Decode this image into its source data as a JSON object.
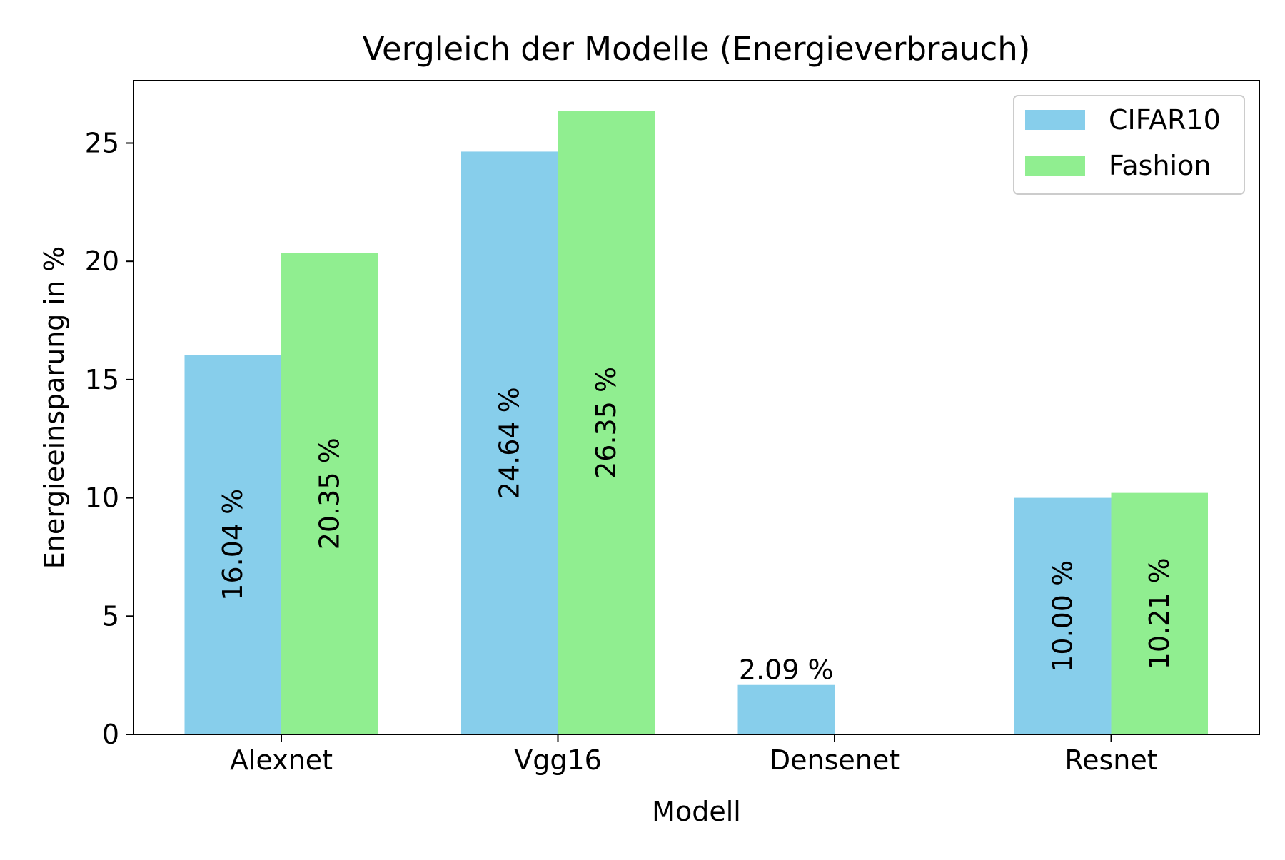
{
  "chart_data": {
    "type": "bar",
    "title": "Vergleich der Modelle (Energieverbrauch)",
    "xlabel": "Modell",
    "ylabel": "Energieeinsparung in %",
    "categories": [
      "Alexnet",
      "Vgg16",
      "Densenet",
      "Resnet"
    ],
    "series": [
      {
        "name": "CIFAR10",
        "color": "#87CEEB",
        "values": [
          16.04,
          24.64,
          2.09,
          10.0
        ],
        "labels": [
          "16.04 %",
          "24.64 %",
          "2.09 %",
          "10.00 %"
        ]
      },
      {
        "name": "Fashion",
        "color": "#90EE90",
        "values": [
          20.35,
          26.35,
          null,
          10.21
        ],
        "labels": [
          "20.35 %",
          "26.35 %",
          "",
          "10.21 %"
        ]
      }
    ],
    "ylim": [
      0,
      27.64
    ],
    "yticks": [
      0,
      5,
      10,
      15,
      20,
      25
    ],
    "legend_position": "top-right",
    "grid": false
  }
}
